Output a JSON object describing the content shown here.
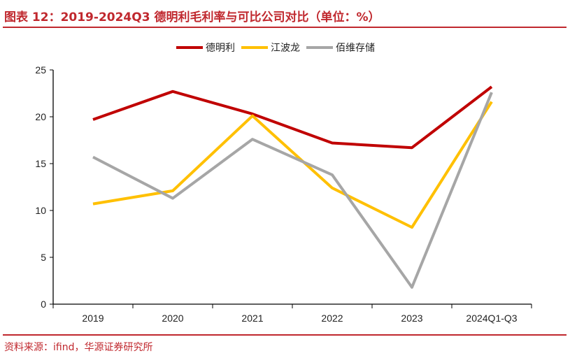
{
  "title": "图表 12：2019-2024Q3 德明利毛利率与可比公司对比（单位：%）",
  "source": "资料来源：ifind，华源证券研究所",
  "chart_data": {
    "type": "line",
    "title": "图表 12：2019-2024Q3 德明利毛利率与可比公司对比（单位：%）",
    "categories": [
      "2019",
      "2020",
      "2021",
      "2022",
      "2023",
      "2024Q1-Q3"
    ],
    "ylim": [
      0,
      25
    ],
    "yticks": [
      0,
      5,
      10,
      15,
      20,
      25
    ],
    "xlabel": "",
    "ylabel": "",
    "grid": false,
    "legend_position": "top-center",
    "series": [
      {
        "name": "德明利",
        "color": "#c00000",
        "values": [
          19.7,
          22.7,
          20.3,
          17.2,
          16.7,
          23.2
        ]
      },
      {
        "name": "江波龙",
        "color": "#ffc000",
        "values": [
          10.7,
          12.1,
          20.1,
          12.4,
          8.2,
          21.6
        ]
      },
      {
        "name": "佰维存储",
        "color": "#a6a6a6",
        "values": [
          15.7,
          11.3,
          17.6,
          13.8,
          1.8,
          22.6
        ]
      }
    ]
  }
}
